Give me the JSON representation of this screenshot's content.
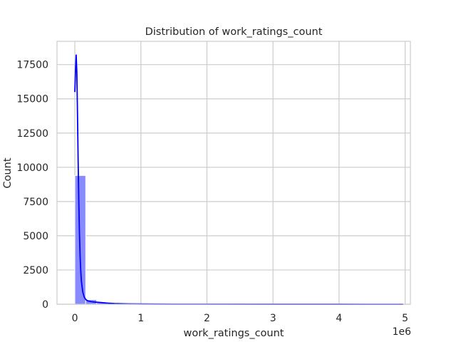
{
  "chart_data": {
    "type": "bar",
    "title": "Distribution of work_ratings_count",
    "xlabel": "work_ratings_count",
    "ylabel": "Count",
    "x_offset_label": "1e6",
    "xlim": [
      -270000,
      5080000
    ],
    "ylim": [
      0,
      19200
    ],
    "x_ticks": [
      0,
      1000000,
      2000000,
      3000000,
      4000000,
      5000000
    ],
    "x_tick_labels": [
      "0",
      "1",
      "2",
      "3",
      "4",
      "5"
    ],
    "y_ticks": [
      0,
      2500,
      5000,
      7500,
      10000,
      12500,
      15000,
      17500
    ],
    "y_tick_labels": [
      "0",
      "2500",
      "5000",
      "7500",
      "10000",
      "12500",
      "15000",
      "17500"
    ],
    "grid": true,
    "bar_color": "#8a8aff",
    "line_color": "#0000ff",
    "bin_width": 165000,
    "bins": [
      {
        "x0": 0,
        "count": 9400
      },
      {
        "x0": 165000,
        "count": 330
      },
      {
        "x0": 330000,
        "count": 110
      },
      {
        "x0": 495000,
        "count": 60
      },
      {
        "x0": 660000,
        "count": 35
      },
      {
        "x0": 825000,
        "count": 20
      },
      {
        "x0": 990000,
        "count": 12
      },
      {
        "x0": 1155000,
        "count": 8
      },
      {
        "x0": 1320000,
        "count": 6
      },
      {
        "x0": 1485000,
        "count": 4
      },
      {
        "x0": 1650000,
        "count": 3
      },
      {
        "x0": 1815000,
        "count": 2
      },
      {
        "x0": 1980000,
        "count": 2
      },
      {
        "x0": 2145000,
        "count": 1
      },
      {
        "x0": 2310000,
        "count": 1
      },
      {
        "x0": 2475000,
        "count": 1
      },
      {
        "x0": 2640000,
        "count": 1
      },
      {
        "x0": 2805000,
        "count": 1
      },
      {
        "x0": 2970000,
        "count": 1
      },
      {
        "x0": 3135000,
        "count": 0
      },
      {
        "x0": 3300000,
        "count": 1
      },
      {
        "x0": 3465000,
        "count": 0
      },
      {
        "x0": 3630000,
        "count": 1
      },
      {
        "x0": 3795000,
        "count": 0
      },
      {
        "x0": 3960000,
        "count": 1
      },
      {
        "x0": 4125000,
        "count": 0
      },
      {
        "x0": 4290000,
        "count": 0
      },
      {
        "x0": 4455000,
        "count": 0
      },
      {
        "x0": 4620000,
        "count": 0
      },
      {
        "x0": 4785000,
        "count": 1
      }
    ],
    "kde": {
      "x": [
        0,
        10000,
        20000,
        30000,
        40000,
        50000,
        60000,
        70000,
        80000,
        90000,
        100000,
        120000,
        140000,
        160000,
        180000,
        200000,
        250000,
        300000,
        400000,
        500000,
        600000,
        800000,
        1000000,
        1500000,
        2000000,
        3000000,
        4000000,
        4970000
      ],
      "y": [
        15500,
        17000,
        18200,
        17000,
        14000,
        10500,
        7500,
        5200,
        3500,
        2400,
        1650,
        900,
        550,
        380,
        290,
        240,
        190,
        160,
        120,
        80,
        50,
        25,
        15,
        8,
        5,
        3,
        2,
        1
      ]
    }
  }
}
